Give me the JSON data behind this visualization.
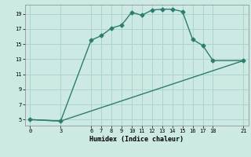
{
  "xlabel": "Humidex (Indice chaleur)",
  "line1_x": [
    0,
    3,
    6,
    7,
    8,
    9,
    10,
    11,
    12,
    13,
    14,
    15,
    16,
    17,
    18,
    21
  ],
  "line1_y": [
    5,
    4.8,
    15.5,
    16.1,
    17.1,
    17.5,
    19.2,
    18.8,
    19.5,
    19.6,
    19.6,
    19.3,
    15.6,
    14.8,
    12.8,
    12.8
  ],
  "line2_x": [
    0,
    3,
    21
  ],
  "line2_y": [
    5,
    4.8,
    12.8
  ],
  "color": "#2d7d6e",
  "bg_color": "#cce9e4",
  "grid_color": "#aad4cc",
  "xlim": [
    -0.5,
    21.5
  ],
  "ylim": [
    4.2,
    20.2
  ],
  "xticks": [
    0,
    3,
    6,
    7,
    8,
    9,
    10,
    11,
    12,
    13,
    14,
    15,
    16,
    17,
    18,
    21
  ],
  "yticks": [
    5,
    7,
    9,
    11,
    13,
    15,
    17,
    19
  ],
  "marker": "D",
  "markersize": 2.5,
  "linewidth": 1.0
}
